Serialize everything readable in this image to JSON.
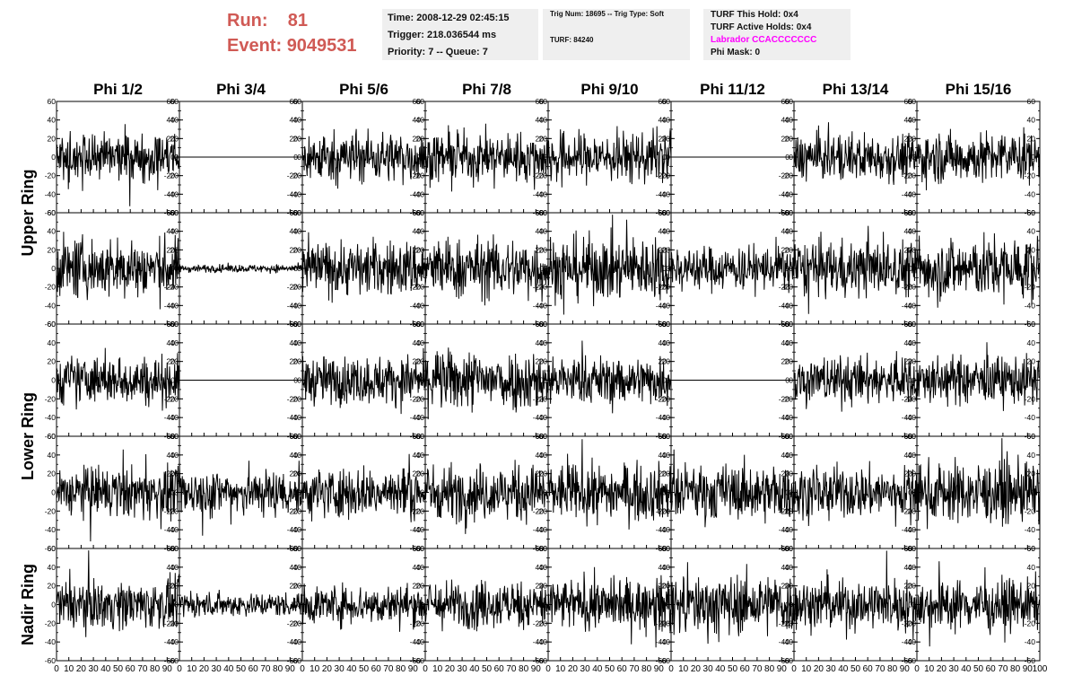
{
  "header": {
    "run_label": "Run:",
    "run_value": "81",
    "event_label": "Event:",
    "event_value": "9049531"
  },
  "info_box_1": {
    "time": "Time: 2008-12-29 02:45:15",
    "trigger": "Trigger: 218.036544 ms",
    "priority": "Priority: 7 -- Queue: 7"
  },
  "info_box_2": {
    "trig": "Trig Num: 18695 -- Trig Type: Soft",
    "turf": "TURF: 84240"
  },
  "info_box_3": {
    "turf_hold": "TURF This Hold: 0x4",
    "turf_active": "TURF Active Holds: 0x4",
    "labrador": "Labrador CCACCCCCCC",
    "phi_mask": "Phi Mask: 0"
  },
  "colors": {
    "run_event": "#d05a55",
    "labrador": "#ff00ff",
    "info_bg": "#efefef",
    "trace": "#000000"
  },
  "chart_data": {
    "type": "line",
    "column_titles": [
      "Phi 1/2",
      "Phi 3/4",
      "Phi 5/6",
      "Phi 7/8",
      "Phi 9/10",
      "Phi 11/12",
      "Phi 13/14",
      "Phi 15/16"
    ],
    "row_group_labels": [
      "Upper Ring",
      "Lower Ring",
      "Nadir Ring"
    ],
    "row_group_spans": [
      [
        0,
        1
      ],
      [
        2,
        3
      ],
      [
        4,
        4
      ]
    ],
    "xlim": [
      0,
      100
    ],
    "ylim": [
      -60,
      60
    ],
    "x_ticks": [
      0,
      10,
      20,
      30,
      40,
      50,
      60,
      70,
      80,
      90
    ],
    "x_tick_labels_last_col": [
      0,
      10,
      20,
      30,
      40,
      50,
      60,
      70,
      80,
      90,
      100
    ],
    "y_ticks": [
      -60,
      -40,
      -20,
      0,
      20,
      40,
      60
    ],
    "rows": 5,
    "cols": 8,
    "flat_panels": [
      [
        0,
        1
      ],
      [
        0,
        5
      ],
      [
        2,
        1
      ],
      [
        2,
        5
      ]
    ],
    "low_amplitude_panels": [
      [
        1,
        1
      ]
    ],
    "panel_amplitude": [
      [
        30,
        0,
        32,
        30,
        32,
        0,
        30,
        32
      ],
      [
        38,
        5,
        35,
        38,
        40,
        28,
        35,
        40
      ],
      [
        30,
        0,
        30,
        38,
        30,
        0,
        30,
        30
      ],
      [
        32,
        30,
        32,
        35,
        35,
        35,
        32,
        38
      ],
      [
        30,
        15,
        25,
        30,
        32,
        38,
        32,
        32
      ]
    ]
  }
}
